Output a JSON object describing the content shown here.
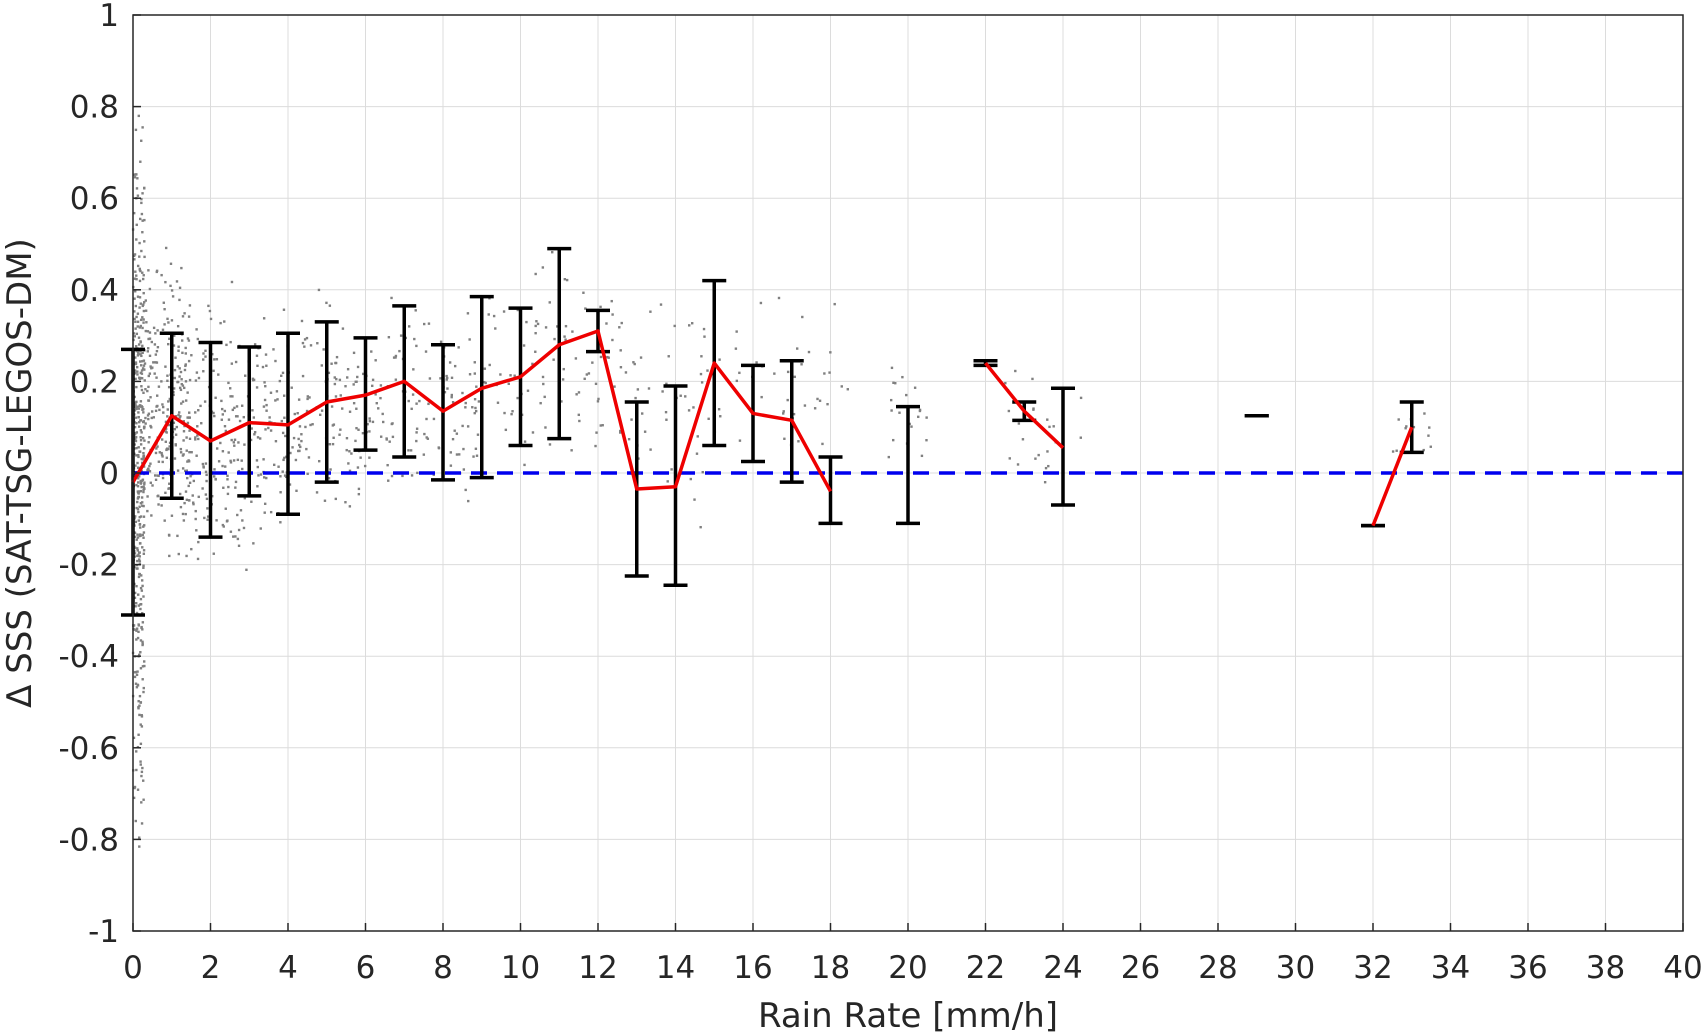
{
  "chart_data": {
    "type": "scatter",
    "title": "",
    "xlabel": "Rain Rate [mm/h]",
    "ylabel": "Δ SSS (SAT-TSG-LEGOS-DM)",
    "xlim": [
      0,
      40
    ],
    "ylim": [
      -1,
      1
    ],
    "xticks": [
      0,
      2,
      4,
      6,
      8,
      10,
      12,
      14,
      16,
      18,
      20,
      22,
      24,
      26,
      28,
      30,
      32,
      34,
      36,
      38,
      40
    ],
    "yticks": [
      -1,
      -0.8,
      -0.6,
      -0.4,
      -0.2,
      0,
      0.2,
      0.4,
      0.6,
      0.8,
      1
    ],
    "xtick_labels": [
      "0",
      "2",
      "4",
      "6",
      "8",
      "10",
      "12",
      "14",
      "16",
      "18",
      "20",
      "22",
      "24",
      "26",
      "28",
      "30",
      "32",
      "34",
      "36",
      "38",
      "40"
    ],
    "ytick_labels": [
      "-1",
      "-0.8",
      "-0.6",
      "-0.4",
      "-0.2",
      "0",
      "0.2",
      "0.4",
      "0.6",
      "0.8",
      "1"
    ],
    "grid": true,
    "zero_line": {
      "y": 0,
      "style": "dashed",
      "color": "#0000ee"
    },
    "mean_line_color": "#ee0000",
    "errorbar_color": "#000000",
    "scatter_color": "#808080",
    "binned_stats": [
      {
        "x": 0,
        "mean": -0.02,
        "low": -0.31,
        "high": 0.27
      },
      {
        "x": 1,
        "mean": 0.125,
        "low": -0.055,
        "high": 0.305
      },
      {
        "x": 2,
        "mean": 0.07,
        "low": -0.14,
        "high": 0.285
      },
      {
        "x": 3,
        "mean": 0.11,
        "low": -0.05,
        "high": 0.275
      },
      {
        "x": 4,
        "mean": 0.105,
        "low": -0.09,
        "high": 0.305
      },
      {
        "x": 5,
        "mean": 0.155,
        "low": -0.02,
        "high": 0.33
      },
      {
        "x": 6,
        "mean": 0.17,
        "low": 0.05,
        "high": 0.295
      },
      {
        "x": 7,
        "mean": 0.2,
        "low": 0.035,
        "high": 0.365
      },
      {
        "x": 8,
        "mean": 0.135,
        "low": -0.015,
        "high": 0.28
      },
      {
        "x": 9,
        "mean": 0.185,
        "low": -0.01,
        "high": 0.385
      },
      {
        "x": 10,
        "mean": 0.21,
        "low": 0.06,
        "high": 0.36
      },
      {
        "x": 11,
        "mean": 0.28,
        "low": 0.075,
        "high": 0.49
      },
      {
        "x": 12,
        "mean": 0.31,
        "low": 0.265,
        "high": 0.355
      },
      {
        "x": 13,
        "mean": -0.035,
        "low": -0.225,
        "high": 0.155
      },
      {
        "x": 14,
        "mean": -0.03,
        "low": -0.245,
        "high": 0.19
      },
      {
        "x": 15,
        "mean": 0.24,
        "low": 0.06,
        "high": 0.42
      },
      {
        "x": 16,
        "mean": 0.13,
        "low": 0.025,
        "high": 0.235
      },
      {
        "x": 17,
        "mean": 0.115,
        "low": -0.02,
        "high": 0.245
      },
      {
        "x": 18,
        "mean": -0.04,
        "low": -0.11,
        "high": 0.035
      },
      {
        "x": 20,
        "mean": 0.015,
        "low": -0.11,
        "high": 0.145
      },
      {
        "x": 22,
        "mean": 0.24,
        "low": 0.235,
        "high": 0.245
      },
      {
        "x": 23,
        "mean": 0.135,
        "low": 0.115,
        "high": 0.155
      },
      {
        "x": 24,
        "mean": 0.055,
        "low": -0.07,
        "high": 0.185
      },
      {
        "x": 29,
        "mean": 0.125,
        "low": 0.125,
        "high": 0.125
      },
      {
        "x": 32,
        "mean": -0.115,
        "low": -0.115,
        "high": -0.115
      },
      {
        "x": 33,
        "mean": 0.1,
        "low": 0.045,
        "high": 0.155
      }
    ],
    "mean_line_segments": [
      [
        0,
        1,
        2,
        3,
        4,
        5,
        6,
        7,
        8,
        9,
        10,
        11,
        12,
        13,
        14,
        15,
        16,
        17,
        18
      ],
      [
        22,
        23,
        24
      ],
      [
        32,
        33
      ]
    ],
    "scatter_clusters": [
      {
        "x_min": 0,
        "x_max": 0.3,
        "y_min": -0.95,
        "y_max": 0.97,
        "count": 420
      },
      {
        "x_min": 0.3,
        "x_max": 1.5,
        "y_min": -0.3,
        "y_max": 0.55,
        "count": 260
      },
      {
        "x_min": 1.5,
        "x_max": 3.5,
        "y_min": -0.34,
        "y_max": 0.47,
        "count": 200
      },
      {
        "x_min": 3.5,
        "x_max": 6,
        "y_min": -0.2,
        "y_max": 0.45,
        "count": 150
      },
      {
        "x_min": 6,
        "x_max": 9,
        "y_min": -0.15,
        "y_max": 0.47,
        "count": 130
      },
      {
        "x_min": 9,
        "x_max": 12.5,
        "y_min": -0.1,
        "y_max": 0.57,
        "count": 90
      },
      {
        "x_min": 12.5,
        "x_max": 15,
        "y_min": -0.2,
        "y_max": 0.54,
        "count": 50
      },
      {
        "x_min": 15,
        "x_max": 18.5,
        "y_min": -0.05,
        "y_max": 0.43,
        "count": 45
      },
      {
        "x_min": 19.5,
        "x_max": 20.5,
        "y_min": -0.14,
        "y_max": 0.38,
        "count": 20
      },
      {
        "x_min": 22.5,
        "x_max": 24.5,
        "y_min": -0.1,
        "y_max": 0.33,
        "count": 25
      },
      {
        "x_min": 32.5,
        "x_max": 33.5,
        "y_min": 0.0,
        "y_max": 0.17,
        "count": 15
      }
    ]
  }
}
